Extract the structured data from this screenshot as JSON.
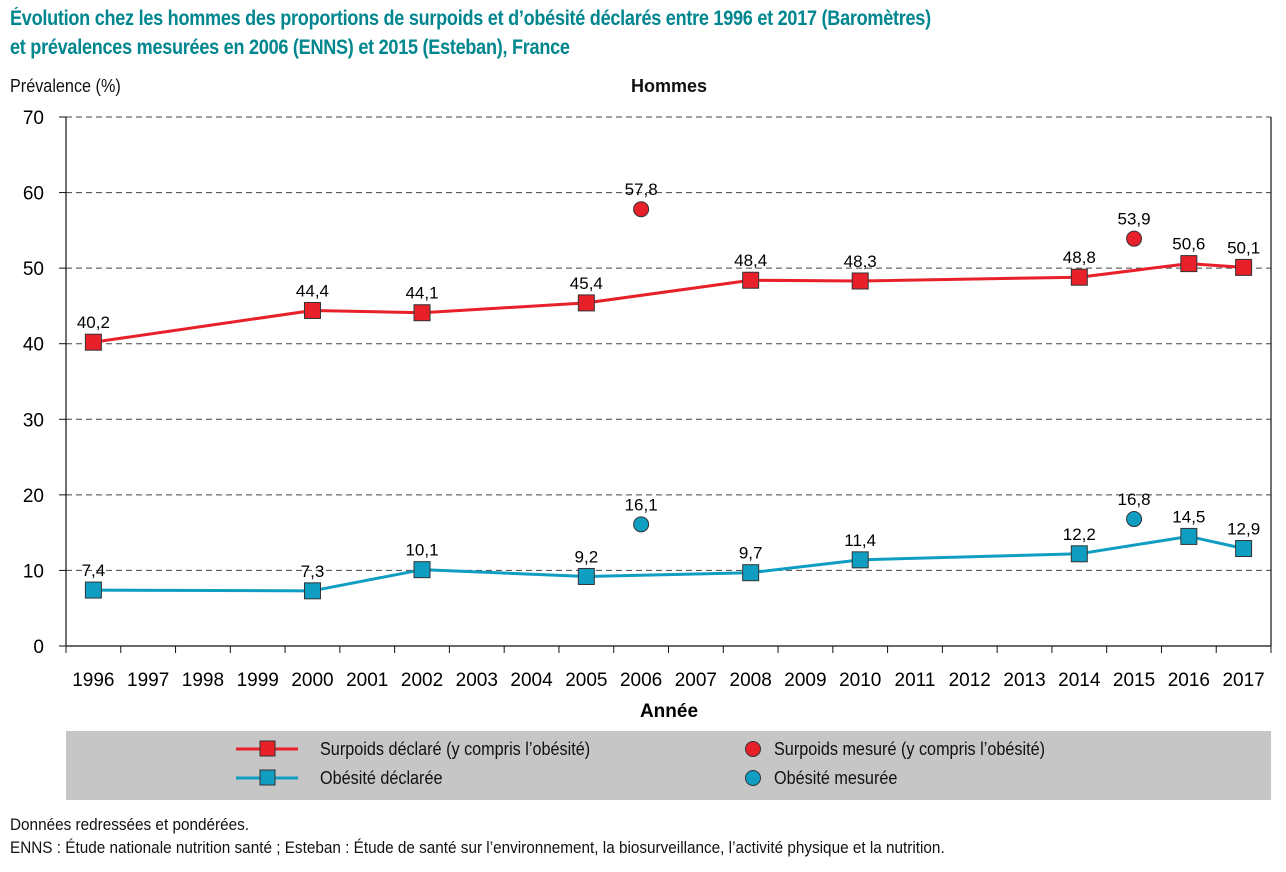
{
  "title_lines": [
    "Évolution chez les hommes des proportions de surpoids et d’obésité déclarés entre 1996 et 2017 (Baromètres)",
    "et prévalences mesurées en 2006 (ENNS) et 2015 (Esteban), France"
  ],
  "colors": {
    "title": "#00868f",
    "surpoids": "#e8202a",
    "obesite": "#0f9ec2",
    "legend_bg": "#c6c6c6"
  },
  "chart_data": {
    "type": "line",
    "title": "Évolution chez les hommes des proportions de surpoids et d’obésité déclarés entre 1996 et 2017 (Baromètres) et prévalences mesurées en 2006 (ENNS) et 2015 (Esteban), France",
    "subtitle": "Hommes",
    "xlabel": "Année",
    "ylabel": "Prévalence (%)",
    "ylim": [
      0,
      70
    ],
    "yticks": [
      "0",
      "10",
      "20",
      "30",
      "40",
      "50",
      "60",
      "70"
    ],
    "grid": "horizontal dashed",
    "legend_position": "bottom",
    "categories": [
      "1996",
      "1997",
      "1998",
      "1999",
      "2000",
      "2001",
      "2002",
      "2003",
      "2004",
      "2005",
      "2006",
      "2007",
      "2008",
      "2009",
      "2010",
      "2011",
      "2012",
      "2013",
      "2014",
      "2015",
      "2016",
      "2017"
    ],
    "series": [
      {
        "name": "Surpoids déclaré (y compris l’obésité)",
        "kind": "line-square",
        "color": "#e8202a",
        "points": [
          {
            "x": "1996",
            "y": 40.2,
            "label": "40,2"
          },
          {
            "x": "2000",
            "y": 44.4,
            "label": "44,4"
          },
          {
            "x": "2002",
            "y": 44.1,
            "label": "44,1"
          },
          {
            "x": "2005",
            "y": 45.4,
            "label": "45,4"
          },
          {
            "x": "2008",
            "y": 48.4,
            "label": "48,4"
          },
          {
            "x": "2010",
            "y": 48.3,
            "label": "48,3"
          },
          {
            "x": "2014",
            "y": 48.8,
            "label": "48,8"
          },
          {
            "x": "2016",
            "y": 50.6,
            "label": "50,6"
          },
          {
            "x": "2017",
            "y": 50.1,
            "label": "50,1"
          }
        ]
      },
      {
        "name": "Obésité déclarée",
        "kind": "line-square",
        "color": "#0f9ec2",
        "points": [
          {
            "x": "1996",
            "y": 7.4,
            "label": "7,4"
          },
          {
            "x": "2000",
            "y": 7.3,
            "label": "7,3"
          },
          {
            "x": "2002",
            "y": 10.1,
            "label": "10,1"
          },
          {
            "x": "2005",
            "y": 9.2,
            "label": "9,2"
          },
          {
            "x": "2008",
            "y": 9.7,
            "label": "9,7"
          },
          {
            "x": "2010",
            "y": 11.4,
            "label": "11,4"
          },
          {
            "x": "2014",
            "y": 12.2,
            "label": "12,2"
          },
          {
            "x": "2016",
            "y": 14.5,
            "label": "14,5"
          },
          {
            "x": "2017",
            "y": 12.9,
            "label": "12,9"
          }
        ]
      },
      {
        "name": "Surpoids mesuré (y compris l’obésité)",
        "kind": "circle",
        "color": "#e8202a",
        "points": [
          {
            "x": "2006",
            "y": 57.8,
            "label": "57,8"
          },
          {
            "x": "2015",
            "y": 53.9,
            "label": "53,9"
          }
        ]
      },
      {
        "name": "Obésité mesurée",
        "kind": "circle",
        "color": "#0f9ec2",
        "points": [
          {
            "x": "2006",
            "y": 16.1,
            "label": "16,1"
          },
          {
            "x": "2015",
            "y": 16.8,
            "label": "16,8"
          }
        ]
      }
    ]
  },
  "notes": [
    "Données redressées et pondérées.",
    "ENNS : Étude nationale nutrition santé ; Esteban : Étude de santé sur l’environnement, la biosurveillance, l’activité physique et la nutrition."
  ]
}
